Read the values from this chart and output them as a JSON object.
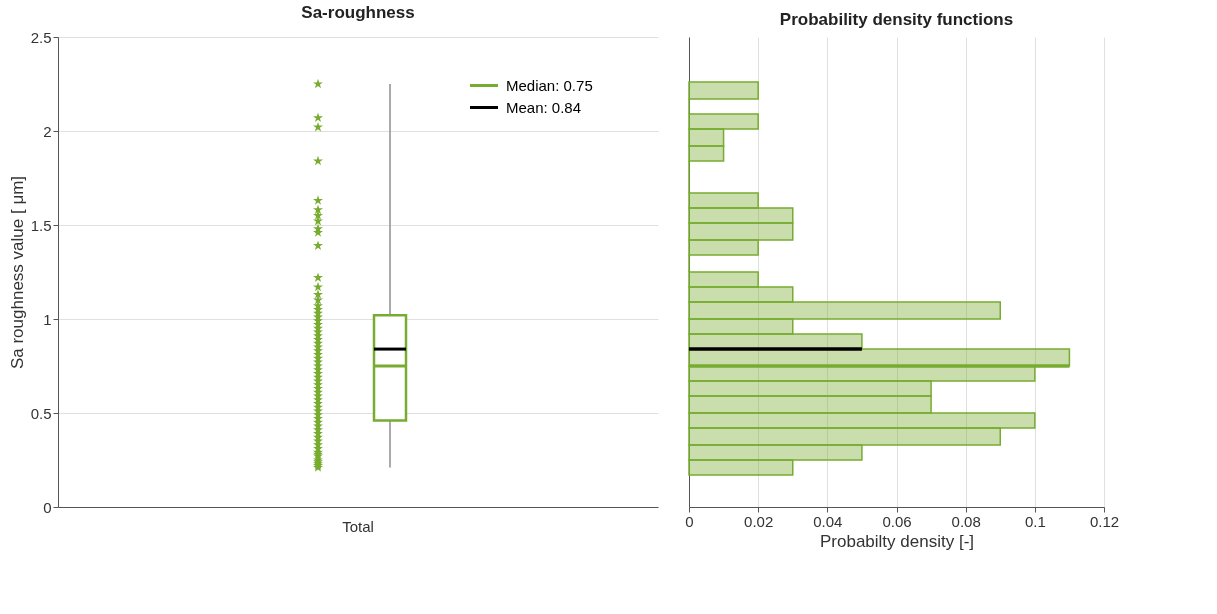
{
  "chart_data": [
    {
      "type": "box",
      "title": "Sa-roughness",
      "ylabel": "Sa roughness value [ μm]",
      "categories": [
        "Total"
      ],
      "ylim": [
        0,
        2.5
      ],
      "yticks": [
        0,
        0.5,
        1,
        1.5,
        2,
        2.5
      ],
      "grid": "y",
      "marker": "star",
      "annotations": [
        "Median: 0.75",
        "Mean: 0.84"
      ],
      "series": [
        {
          "type": "box",
          "color": "#77ac30",
          "boxes": [
            {
              "low": 0.21,
              "q1": 0.46,
              "median": 0.75,
              "q3": 1.02,
              "high": 2.25,
              "mean": 0.84
            }
          ]
        },
        {
          "type": "scatter",
          "color": "#77ac30",
          "x": [
            "Total",
            "Total",
            "Total",
            "Total",
            "Total",
            "Total",
            "Total",
            "Total",
            "Total",
            "Total",
            "Total",
            "Total",
            "Total",
            "Total",
            "Total",
            "Total",
            "Total",
            "Total",
            "Total",
            "Total",
            "Total",
            "Total",
            "Total",
            "Total",
            "Total",
            "Total",
            "Total",
            "Total",
            "Total",
            "Total",
            "Total",
            "Total",
            "Total",
            "Total",
            "Total",
            "Total",
            "Total",
            "Total",
            "Total",
            "Total",
            "Total",
            "Total",
            "Total",
            "Total",
            "Total",
            "Total",
            "Total",
            "Total",
            "Total",
            "Total",
            "Total",
            "Total",
            "Total",
            "Total",
            "Total",
            "Total",
            "Total",
            "Total",
            "Total",
            "Total",
            "Total",
            "Total"
          ],
          "values": [
            2.25,
            2.07,
            2.02,
            1.84,
            1.63,
            1.58,
            1.55,
            1.52,
            1.48,
            1.46,
            1.39,
            1.22,
            1.17,
            1.13,
            1.1,
            1.07,
            1.05,
            1.03,
            1.01,
            0.99,
            0.97,
            0.95,
            0.93,
            0.91,
            0.89,
            0.87,
            0.85,
            0.83,
            0.81,
            0.79,
            0.77,
            0.75,
            0.73,
            0.71,
            0.69,
            0.67,
            0.65,
            0.63,
            0.61,
            0.59,
            0.57,
            0.55,
            0.53,
            0.51,
            0.49,
            0.47,
            0.45,
            0.43,
            0.41,
            0.39,
            0.37,
            0.35,
            0.33,
            0.31,
            0.29,
            0.27,
            0.25,
            0.23,
            0.21,
            0.22,
            0.24,
            0.28
          ]
        }
      ]
    },
    {
      "type": "histogram",
      "title": "Probability density functions",
      "xlabel": "Probabilty density [-]",
      "orientation": "horizontal",
      "color": "#77ac30",
      "xlim": [
        0,
        0.12
      ],
      "xticks": [
        0,
        0.02,
        0.04,
        0.06,
        0.08,
        0.1,
        0.12
      ],
      "ylim": [
        0,
        2.5
      ],
      "tick_labels": "x",
      "grid": "x",
      "bins": [
        0.17,
        0.25,
        0.33,
        0.42,
        0.5,
        0.59,
        0.67,
        0.75,
        0.84,
        0.92,
        1.0,
        1.09,
        1.17,
        1.25,
        1.34,
        1.42,
        1.51,
        1.59,
        1.67,
        1.76,
        1.84,
        1.92,
        2.01,
        2.09,
        2.17,
        2.26
      ],
      "values": [
        0.03,
        0.05,
        0.09,
        0.1,
        0.07,
        0.07,
        0.1,
        0.11,
        0.05,
        0.03,
        0.09,
        0.03,
        0.02,
        0,
        0.02,
        0.03,
        0.03,
        0.02,
        0,
        0,
        0.01,
        0.01,
        0.02,
        0,
        0.02
      ],
      "ref_lines": [
        {
          "axis": "y",
          "value": 0.75,
          "color": "#77ac30"
        },
        {
          "axis": "y",
          "value": 0.84,
          "color": "#000000"
        }
      ]
    }
  ]
}
